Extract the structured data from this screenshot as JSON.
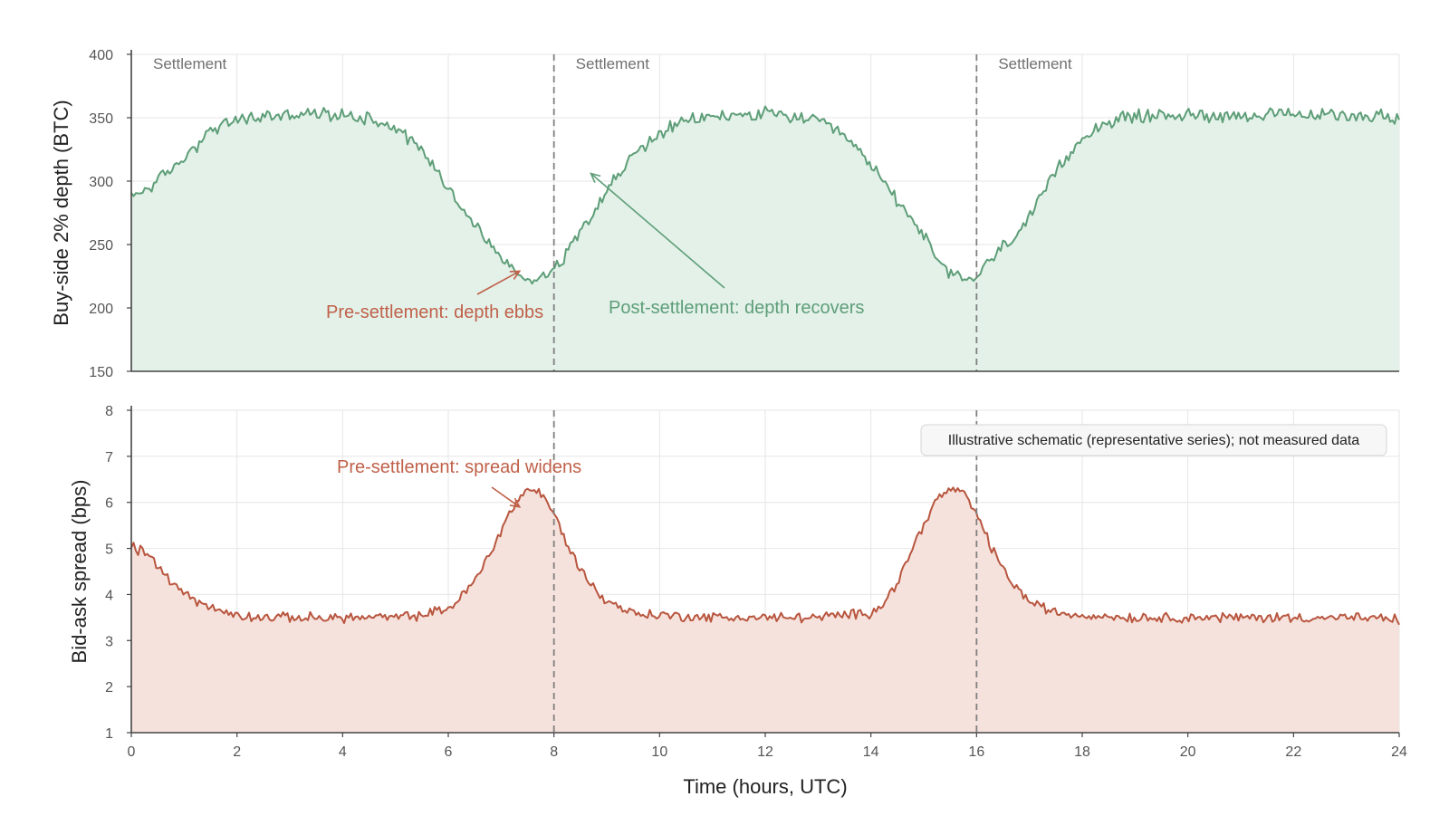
{
  "chart_data": [
    {
      "type": "area",
      "panel": "top",
      "ylabel": "Buy-side 2% depth (BTC)",
      "xlim": [
        0,
        24
      ],
      "ylim": [
        150,
        400
      ],
      "yticks": [
        150,
        200,
        250,
        300,
        350,
        400
      ],
      "xticks": [
        0,
        2,
        4,
        6,
        8,
        10,
        12,
        14,
        16,
        18,
        20,
        22,
        24
      ],
      "grid": true,
      "color": "#5e9e78",
      "fill_color": "#e3f1e9",
      "series": [
        {
          "x": [
            0,
            0.5,
            1,
            1.5,
            2,
            2.5,
            3,
            3.5,
            4,
            4.5,
            5,
            5.5,
            6,
            6.5,
            7,
            7.25,
            7.5,
            7.75,
            8,
            8.25,
            8.5,
            9,
            9.5,
            10,
            10.5,
            11,
            11.5,
            12,
            12.5,
            13,
            13.5,
            14,
            14.5,
            15,
            15.25,
            15.5,
            15.75,
            16,
            16.25,
            16.5,
            17,
            17.5,
            18,
            18.5,
            19,
            19.5,
            20,
            20.5,
            21,
            21.5,
            22,
            22.5,
            23,
            23.5,
            24
          ],
          "y": [
            287,
            300,
            318,
            340,
            348,
            351,
            352,
            353,
            352,
            350,
            343,
            325,
            295,
            265,
            240,
            228,
            223,
            224,
            232,
            243,
            262,
            293,
            320,
            338,
            347,
            351,
            352,
            353,
            351,
            347,
            335,
            313,
            285,
            258,
            237,
            227,
            222,
            225,
            237,
            248,
            270,
            307,
            335,
            347,
            351,
            352,
            352,
            352,
            352,
            352,
            352,
            352,
            352,
            352,
            350
          ]
        }
      ],
      "annotations": [
        {
          "text": "Pre-settlement: depth ebbs",
          "x": 7.35,
          "y": 229,
          "color": "#c0614a"
        },
        {
          "text": "Post-settlement: depth recovers",
          "x": 8.7,
          "y": 306,
          "color": "#5e9e78"
        }
      ],
      "vlines": [
        {
          "x": 0,
          "label": "Settlement"
        },
        {
          "x": 8,
          "label": "Settlement"
        },
        {
          "x": 16,
          "label": "Settlement"
        }
      ]
    },
    {
      "type": "area",
      "panel": "bottom",
      "ylabel": "Bid-ask spread (bps)",
      "xlabel": "Time (hours, UTC)",
      "xlim": [
        0,
        24
      ],
      "ylim": [
        1,
        8
      ],
      "yticks": [
        1,
        2,
        3,
        4,
        5,
        6,
        7,
        8
      ],
      "xticks": [
        0,
        2,
        4,
        6,
        8,
        10,
        12,
        14,
        16,
        18,
        20,
        22,
        24
      ],
      "grid": true,
      "color": "#b8563f",
      "fill_color": "#f6e2dc",
      "series": [
        {
          "x": [
            0,
            0.25,
            0.5,
            0.75,
            1,
            1.25,
            1.5,
            2,
            2.5,
            3,
            3.5,
            4,
            4.5,
            5,
            5.5,
            6,
            6.25,
            6.5,
            6.75,
            7,
            7.25,
            7.5,
            7.75,
            8,
            8.25,
            8.5,
            8.75,
            9,
            9.5,
            10,
            11,
            12,
            13,
            14,
            14.25,
            14.5,
            14.75,
            15,
            15.25,
            15.5,
            15.75,
            16,
            16.25,
            16.5,
            16.75,
            17,
            17.5,
            18,
            19,
            20,
            21,
            22,
            23,
            24
          ],
          "y": [
            5.05,
            4.9,
            4.6,
            4.3,
            4.05,
            3.85,
            3.7,
            3.55,
            3.5,
            3.5,
            3.5,
            3.5,
            3.5,
            3.5,
            3.55,
            3.7,
            3.95,
            4.3,
            4.8,
            5.4,
            5.95,
            6.3,
            6.2,
            5.75,
            5.1,
            4.55,
            4.15,
            3.85,
            3.6,
            3.55,
            3.5,
            3.5,
            3.5,
            3.6,
            3.85,
            4.25,
            4.9,
            5.55,
            6.05,
            6.3,
            6.2,
            5.75,
            5.1,
            4.55,
            4.15,
            3.85,
            3.6,
            3.55,
            3.5,
            3.5,
            3.5,
            3.5,
            3.5,
            3.45
          ]
        }
      ],
      "annotations": [
        {
          "text": "Pre-settlement: spread widens",
          "x": 7.35,
          "y": 5.9,
          "color": "#c0614a"
        }
      ],
      "vlines": [
        {
          "x": 8
        },
        {
          "x": 16
        }
      ],
      "note": "Illustrative schematic (representative series); not measured data"
    }
  ]
}
